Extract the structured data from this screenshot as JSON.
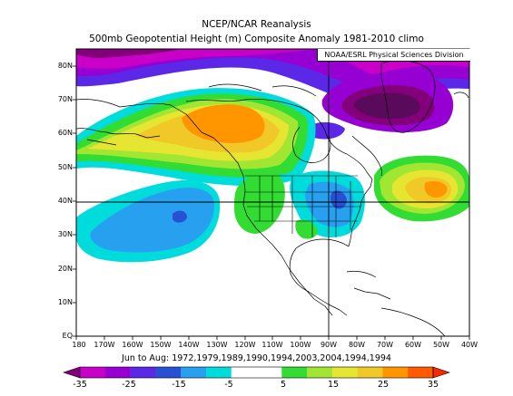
{
  "title": "NCEP/NCAR Reanalysis",
  "subtitle": "500mb Geopotential Height (m) Composite Anomaly 1981-2010 climo",
  "credit": "NOAA/ESRL Physical Sciences Division",
  "date_caption": "Jun to Aug: 1972,1979,1989,1990,1994,2003,2004,1994,1994",
  "lat_labels": [
    "80N",
    "70N",
    "60N",
    "50N",
    "40N",
    "30N",
    "20N",
    "10N",
    "EQ"
  ],
  "lon_labels": [
    "180",
    "170W",
    "160W",
    "150W",
    "140W",
    "130W",
    "120W",
    "110W",
    "100W",
    "90W",
    "80W",
    "70W",
    "60W",
    "50W",
    "40W"
  ],
  "colorbar": {
    "tick_labels": [
      "-35",
      "-25",
      "-15",
      "-5",
      "5",
      "15",
      "25",
      "35"
    ],
    "colors": [
      "#82007a",
      "#c800c8",
      "#9600d2",
      "#5a28e6",
      "#2850d2",
      "#28a0f0",
      "#00dcdc",
      "#ffffff",
      "#ffffff",
      "#32dc32",
      "#a0e632",
      "#e6e632",
      "#f0c828",
      "#ff9600",
      "#ff5a00",
      "#fa2800"
    ]
  },
  "map": {
    "lat_range": [
      0,
      85
    ],
    "lon_range": [
      -180,
      -40
    ],
    "features": [
      "height-anomaly-shading",
      "coastlines",
      "us-state-borders",
      "country-borders",
      "lat-lon-grid"
    ]
  }
}
